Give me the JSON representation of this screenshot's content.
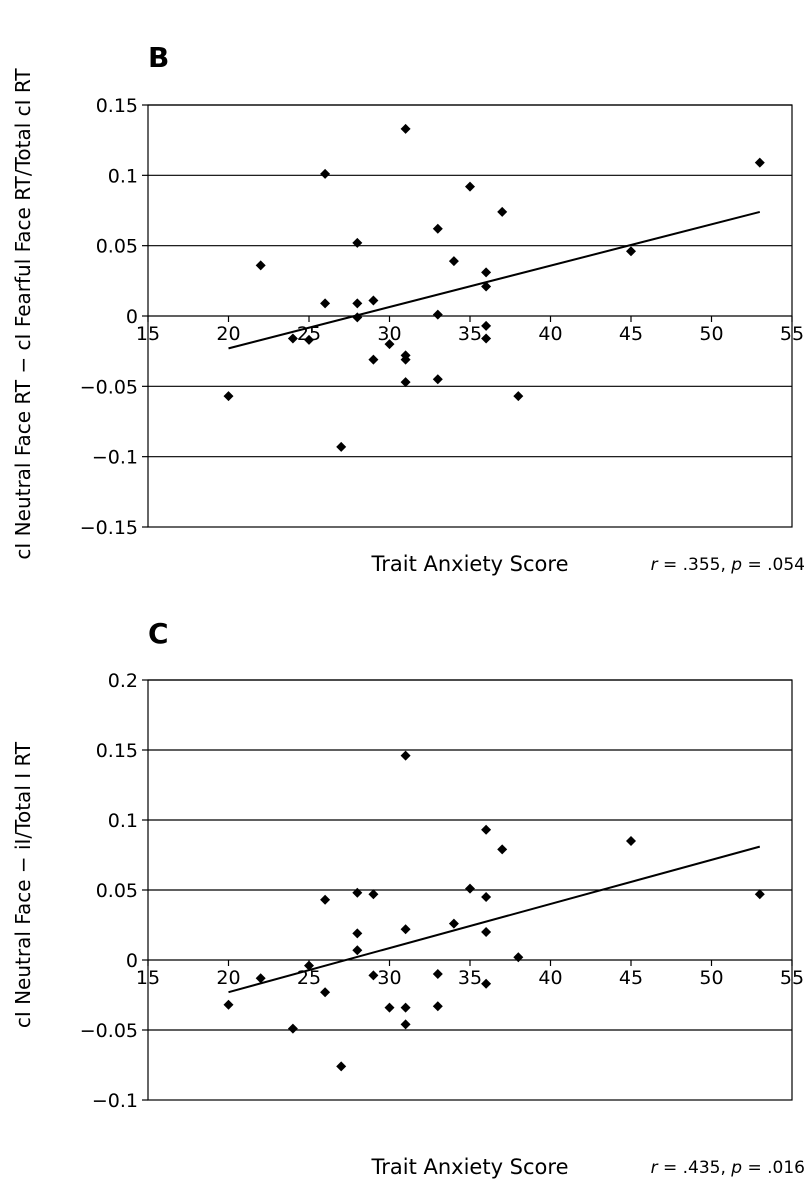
{
  "figure": {
    "ylabel_b": "cI Neutral Face RT − cI Fearful Face RT/Total cI RT",
    "ylabel_c": "cI Neutral Face − iI/Total I RT"
  },
  "chart_data": [
    {
      "type": "scatter",
      "panel": "B",
      "xlabel": "Trait Anxiety Score",
      "stat_r_symbol": "r",
      "stat_r_value": " = .355, ",
      "stat_p_symbol": "p",
      "stat_p_value": " = .054",
      "xlim": [
        15,
        55
      ],
      "ylim": [
        -0.15,
        0.15
      ],
      "xticks": [
        15,
        20,
        25,
        30,
        35,
        40,
        45,
        50,
        55
      ],
      "xtick_labels": [
        "15",
        "20",
        "25",
        "30",
        "35",
        "40",
        "45",
        "50",
        "55"
      ],
      "yticks": [
        0.15,
        0.1,
        0.05,
        0,
        -0.05,
        -0.1,
        -0.15
      ],
      "ytick_labels": [
        "0.15",
        "0.1",
        "0.05",
        "0",
        "−0.05",
        "−0.1",
        "−0.15"
      ],
      "gridlines": "horizontal",
      "x": [
        20,
        22,
        24,
        25,
        26,
        26,
        27,
        28,
        28,
        28,
        29,
        29,
        30,
        31,
        31,
        31,
        31,
        33,
        33,
        33,
        34,
        35,
        36,
        36,
        36,
        36,
        37,
        38,
        45,
        53
      ],
      "y": [
        -0.057,
        0.036,
        -0.016,
        -0.017,
        0.101,
        0.009,
        -0.093,
        0.052,
        0.009,
        -0.001,
        0.011,
        -0.031,
        -0.02,
        0.133,
        -0.028,
        -0.031,
        -0.047,
        0.062,
        0.001,
        -0.045,
        0.039,
        0.092,
        0.031,
        0.021,
        -0.007,
        -0.016,
        0.074,
        -0.057,
        0.046,
        0.109
      ],
      "trendline": {
        "x": [
          20,
          53
        ],
        "y": [
          -0.023,
          0.074
        ]
      }
    },
    {
      "type": "scatter",
      "panel": "C",
      "xlabel": "Trait Anxiety Score",
      "stat_r_symbol": "r",
      "stat_r_value": " = .435, ",
      "stat_p_symbol": "p",
      "stat_p_value": " = .016",
      "xlim": [
        15,
        55
      ],
      "ylim": [
        -0.1,
        0.2
      ],
      "xticks": [
        15,
        20,
        25,
        30,
        35,
        40,
        45,
        50,
        55
      ],
      "xtick_labels": [
        "15",
        "20",
        "25",
        "30",
        "35",
        "40",
        "45",
        "50",
        "55"
      ],
      "yticks": [
        0.2,
        0.15,
        0.1,
        0.05,
        0,
        -0.05,
        -0.1
      ],
      "ytick_labels": [
        "0.2",
        "0.15",
        "0.1",
        "0.05",
        "0",
        "−0.05",
        "−0.1"
      ],
      "gridlines": "horizontal",
      "x": [
        20,
        22,
        24,
        25,
        26,
        26,
        27,
        28,
        28,
        28,
        29,
        29,
        30,
        31,
        31,
        31,
        31,
        33,
        33,
        34,
        35,
        36,
        36,
        36,
        36,
        37,
        38,
        45,
        53
      ],
      "y": [
        -0.032,
        -0.013,
        -0.049,
        -0.004,
        0.043,
        -0.023,
        -0.076,
        0.048,
        0.019,
        0.007,
        0.047,
        -0.011,
        -0.034,
        0.146,
        0.022,
        -0.034,
        -0.046,
        -0.01,
        -0.033,
        0.026,
        0.051,
        0.093,
        0.045,
        0.02,
        -0.017,
        0.079,
        0.002,
        0.085,
        0.047
      ],
      "trendline": {
        "x": [
          20,
          53
        ],
        "y": [
          -0.023,
          0.081
        ]
      }
    }
  ]
}
